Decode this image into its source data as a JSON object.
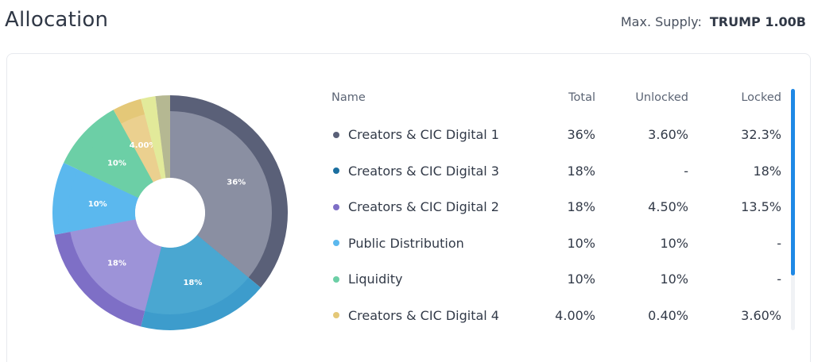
{
  "header": {
    "title": "Allocation",
    "supply_label": "Max. Supply:",
    "supply_value": "TRUMP 1.00B"
  },
  "table": {
    "columns": {
      "name": "Name",
      "total": "Total",
      "unlocked": "Unlocked",
      "locked": "Locked"
    },
    "rows": [
      {
        "name": "Creators & CIC Digital 1",
        "total": "36%",
        "unlocked": "3.60%",
        "locked": "32.3%",
        "color": "#5a6078"
      },
      {
        "name": "Creators & CIC Digital 3",
        "total": "18%",
        "unlocked": "-",
        "locked": "18%",
        "color": "#1b6fa0"
      },
      {
        "name": "Creators & CIC Digital 2",
        "total": "18%",
        "unlocked": "4.50%",
        "locked": "13.5%",
        "color": "#7e6fc6"
      },
      {
        "name": "Public Distribution",
        "total": "10%",
        "unlocked": "10%",
        "locked": "-",
        "color": "#5bb8ee"
      },
      {
        "name": "Liquidity",
        "total": "10%",
        "unlocked": "10%",
        "locked": "-",
        "color": "#6ccfa6"
      },
      {
        "name": "Creators & CIC Digital 4",
        "total": "4.00%",
        "unlocked": "0.40%",
        "locked": "3.60%",
        "color": "#e4c878"
      }
    ]
  },
  "chart_data": {
    "type": "pie",
    "slices": [
      {
        "value": 36,
        "label": "36%",
        "outer": "#5a6078",
        "inner": "#8a8fa2"
      },
      {
        "value": 18,
        "label": "18%",
        "outer": "#3d9ccc",
        "inner": "#4aa7d1"
      },
      {
        "value": 18,
        "label": "18%",
        "outer": "#7e6fc6",
        "inner": "#9d93d8"
      },
      {
        "value": 10,
        "label": "10%",
        "outer": "#5bb8ee",
        "inner": "#5bb8ee"
      },
      {
        "value": 10,
        "label": "10%",
        "outer": "#6ccfa6",
        "inner": "#6ccfa6"
      },
      {
        "value": 4,
        "label": "4.00%",
        "outer": "#e4c878",
        "inner": "#ebd08f"
      },
      {
        "value": 2,
        "label": "",
        "outer": "#e2ea9a",
        "inner": "#e2ea9a"
      },
      {
        "value": 2,
        "label": "",
        "outer": "#b5b892",
        "inner": "#b5b892"
      }
    ]
  }
}
